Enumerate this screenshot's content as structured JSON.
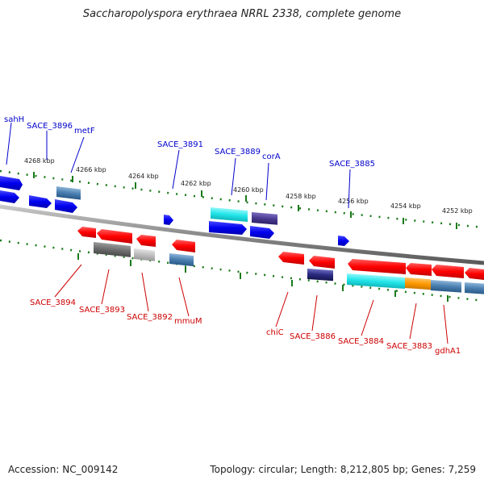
{
  "title": "Saccharopolyspora erythraea NRRL 2338, complete genome",
  "accession": "Accession: NC_009142",
  "stats": "Topology: circular; Length: 8,212,805 bp; Genes: 7,259",
  "colors": {
    "forward": "#0000ff",
    "reverse": "#ff0000",
    "tick": "#1a7a1a",
    "backbone": "#8a8a8a",
    "cyan": "#22e6ea",
    "steel": "#4a7fb0",
    "grey": "#6e6e6e",
    "lightgrey": "#bdbdbd",
    "purple": "#4a3a90",
    "orange": "#ff9900",
    "navy": "#2a2a80"
  },
  "scale": {
    "labels": [
      "4268 kbp",
      "4266 kbp",
      "4264 kbp",
      "4262 kbp",
      "4260 kbp",
      "4258 kbp",
      "4256 kbp",
      "4254 kbp",
      "4252 kbp"
    ]
  },
  "top_labels": [
    "sahH",
    "SACE_3896",
    "metF",
    "SACE_3891",
    "SACE_3889",
    "corA",
    "SACE_3885"
  ],
  "bottom_labels": [
    "SACE_3894",
    "SACE_3893",
    "SACE_3892",
    "mmuM",
    "chiC",
    "SACE_3886",
    "SACE_3884",
    "SACE_3883",
    "gdhA1"
  ]
}
